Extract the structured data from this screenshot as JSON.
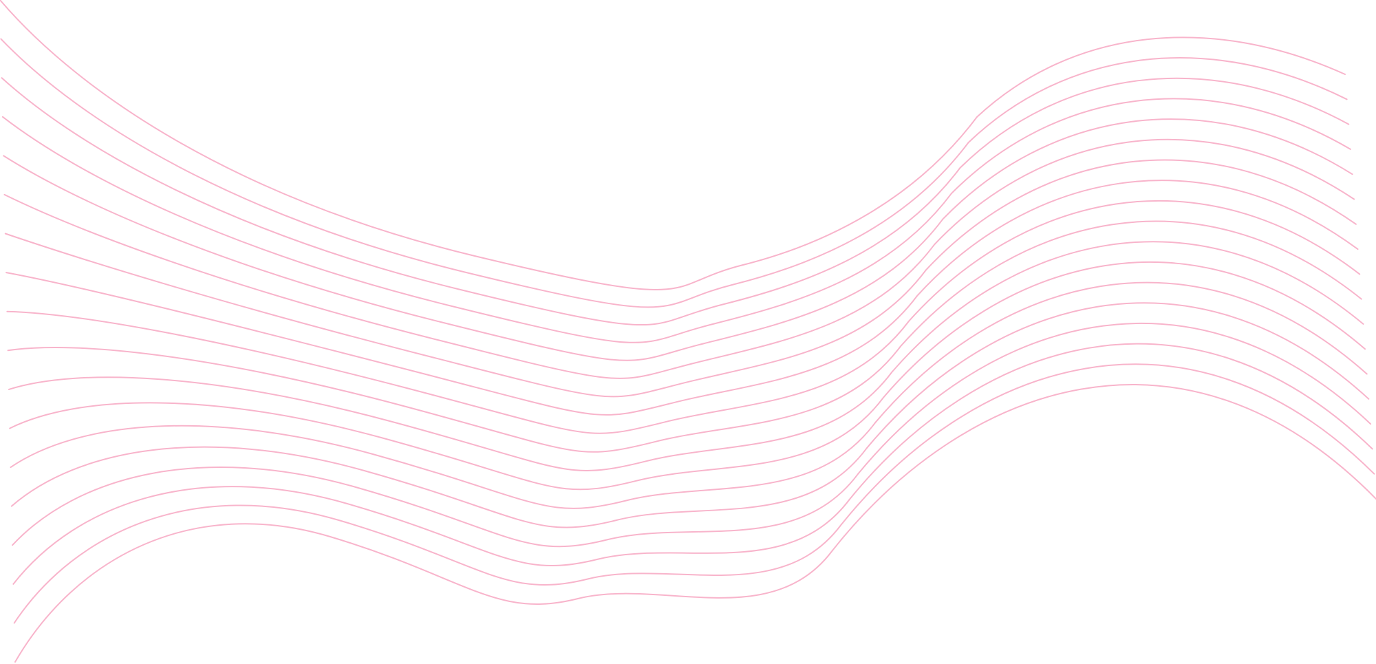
{
  "background": {
    "color": "#ffffff"
  },
  "pattern": {
    "name": "pink-wave-lines",
    "stroke_color": "#f8b4cb",
    "line_count": 18
  }
}
